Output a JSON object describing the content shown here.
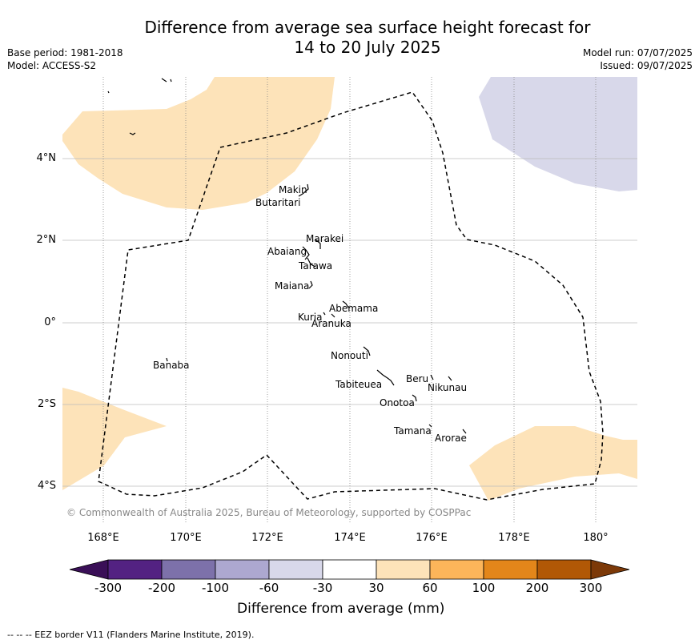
{
  "title": {
    "line1": "Difference from average sea surface height forecast for",
    "line2": "14 to 20 July 2025"
  },
  "meta_left": {
    "base_period": "Base period: 1981-2018",
    "model": "Model: ACCESS-S2"
  },
  "meta_right": {
    "model_run": "Model run: 07/07/2025",
    "issued": "Issued: 09/07/2025"
  },
  "map": {
    "lon_range": [
      167.0,
      181.0
    ],
    "lat_range": [
      -4.8,
      6.0
    ],
    "lon_ticks": [
      "168°E",
      "170°E",
      "172°E",
      "174°E",
      "176°E",
      "178°E",
      "180°"
    ],
    "lat_ticks": [
      "4°N",
      "2°N",
      "0°",
      "2°S",
      "4°S"
    ],
    "islands": [
      "Makin",
      "Butaritari",
      "Marakei",
      "Abaiang",
      "Tarawa",
      "Maiana",
      "Abemama",
      "Kuria",
      "Aranuka",
      "Banaba",
      "Nonouti",
      "Tabiteuea",
      "Beru",
      "Nikunau",
      "Onotoa",
      "Tamana",
      "Arorae"
    ],
    "copyright": "© Commonwealth of Australia 2025, Bureau of Meteorology, supported by COSPPac",
    "colors": {
      "light_orange": "#fde3b9",
      "light_purple": "#d8d8ea",
      "grid": "#bbbbbb"
    }
  },
  "colorbar": {
    "title": "Difference from average (mm)",
    "labels": [
      "-300",
      "-200",
      "-100",
      "-60",
      "-30",
      "30",
      "60",
      "100",
      "200",
      "300"
    ],
    "colors": [
      "#3a0f57",
      "#532282",
      "#7d71aa",
      "#ada8d0",
      "#d8d8ea",
      "#ffffff",
      "#fde3b9",
      "#fcb55a",
      "#e3861a",
      "#b15806",
      "#7c3908"
    ]
  },
  "footer": "--  --  -- EEZ border V11 (Flanders Marine Institute, 2019)."
}
